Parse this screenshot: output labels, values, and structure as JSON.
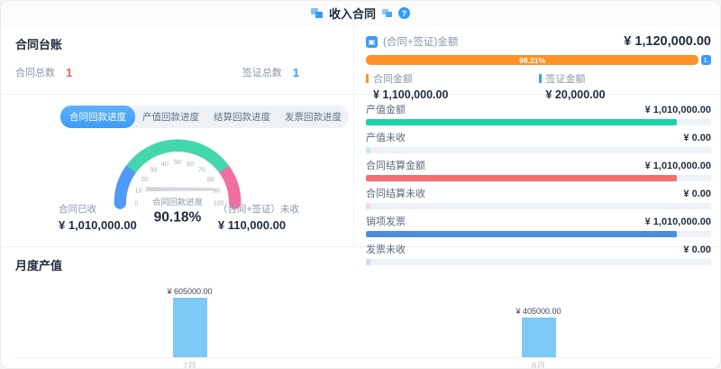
{
  "header": {
    "title": "收入合同",
    "help": "?"
  },
  "ledger": {
    "title": "合同台账",
    "stats": [
      {
        "label": "合同总数",
        "value": "1",
        "color": "#f85d5d"
      },
      {
        "label": "签证总数",
        "value": "1",
        "color": "#2d9cf4"
      }
    ]
  },
  "tabs": [
    {
      "label": "合同回款进度",
      "active": true
    },
    {
      "label": "产值回款进度",
      "active": false
    },
    {
      "label": "结算回款进度",
      "active": false
    },
    {
      "label": "发票回款进度",
      "active": false
    }
  ],
  "gauge": {
    "title": "合同回款进度",
    "value": 90.18,
    "value_text": "90.18%",
    "min": 0,
    "max": 100,
    "ticks": [
      0,
      10,
      20,
      30,
      40,
      50,
      60,
      70,
      80,
      90,
      100
    ],
    "segments": [
      {
        "from": 0,
        "to": 20,
        "color": "#4e9cf6"
      },
      {
        "from": 20,
        "to": 80,
        "color": "#45d7ac"
      },
      {
        "from": 80,
        "to": 100,
        "color": "#f06fa3"
      }
    ],
    "needle_color": "#d3d7dc",
    "received": {
      "label": "合同已收",
      "value": "¥ 1,010,000.00"
    },
    "unreceived": {
      "label": "（合同+签证）未收",
      "value": "¥ 110,000.00"
    }
  },
  "summary": {
    "title": "(合同+签证)金额",
    "total": "¥ 1,120,000.00",
    "split_bar": {
      "contract_pct": 98.21,
      "contract_label": "98.21%",
      "contract_color": "#ff9128",
      "visa_label": "1.",
      "visa_color": "#3d9bf5"
    },
    "legend": [
      {
        "label": "合同金额",
        "value": "¥ 1,100,000.00",
        "color": "#ff9128"
      },
      {
        "label": "签证金额",
        "value": "¥ 20,000.00",
        "color": "#3d9bf5"
      }
    ]
  },
  "metrics": [
    {
      "label": "产值金额",
      "value": "¥ 1,010,000.00",
      "pct": 90,
      "color": "#1ed0a6"
    },
    {
      "label": "产值未收",
      "value": "¥ 0.00",
      "pct": 1.2,
      "color": "#c6ecе2"
    },
    {
      "label": "合同结算金额",
      "value": "¥ 1,010,000.00",
      "pct": 90,
      "color": "#f56d6e"
    },
    {
      "label": "合同结算未收",
      "value": "¥ 0.00",
      "pct": 1.2,
      "color": "#f8d7dc"
    },
    {
      "label": "销项发票",
      "value": "¥ 1,010,000.00",
      "pct": 90,
      "color": "#4a8ee0"
    },
    {
      "label": "发票未收",
      "value": "¥ 0.00",
      "pct": 1.2,
      "color": "#ccdcf2"
    }
  ],
  "monthly": {
    "title": "月度产值",
    "bar_color": "#7dc9f7"
  },
  "chart_data": [
    {
      "type": "gauge",
      "title": "合同回款进度",
      "value": 90.18,
      "min": 0,
      "max": 100,
      "segments": [
        {
          "from": 0,
          "to": 20,
          "color": "#4e9cf6"
        },
        {
          "from": 20,
          "to": 80,
          "color": "#45d7ac"
        },
        {
          "from": 80,
          "to": 100,
          "color": "#f06fa3"
        }
      ]
    },
    {
      "type": "bar",
      "title": "月度产值",
      "categories": [
        "7月",
        "8月"
      ],
      "values": [
        605000,
        405000
      ],
      "value_labels": [
        "¥ 605000.00",
        "¥ 405000.00"
      ],
      "ylabel": "",
      "xlabel": "",
      "ylim": [
        0,
        650000
      ],
      "bar_color": "#7dc9f7",
      "legend_position": "none",
      "grid": false
    }
  ]
}
